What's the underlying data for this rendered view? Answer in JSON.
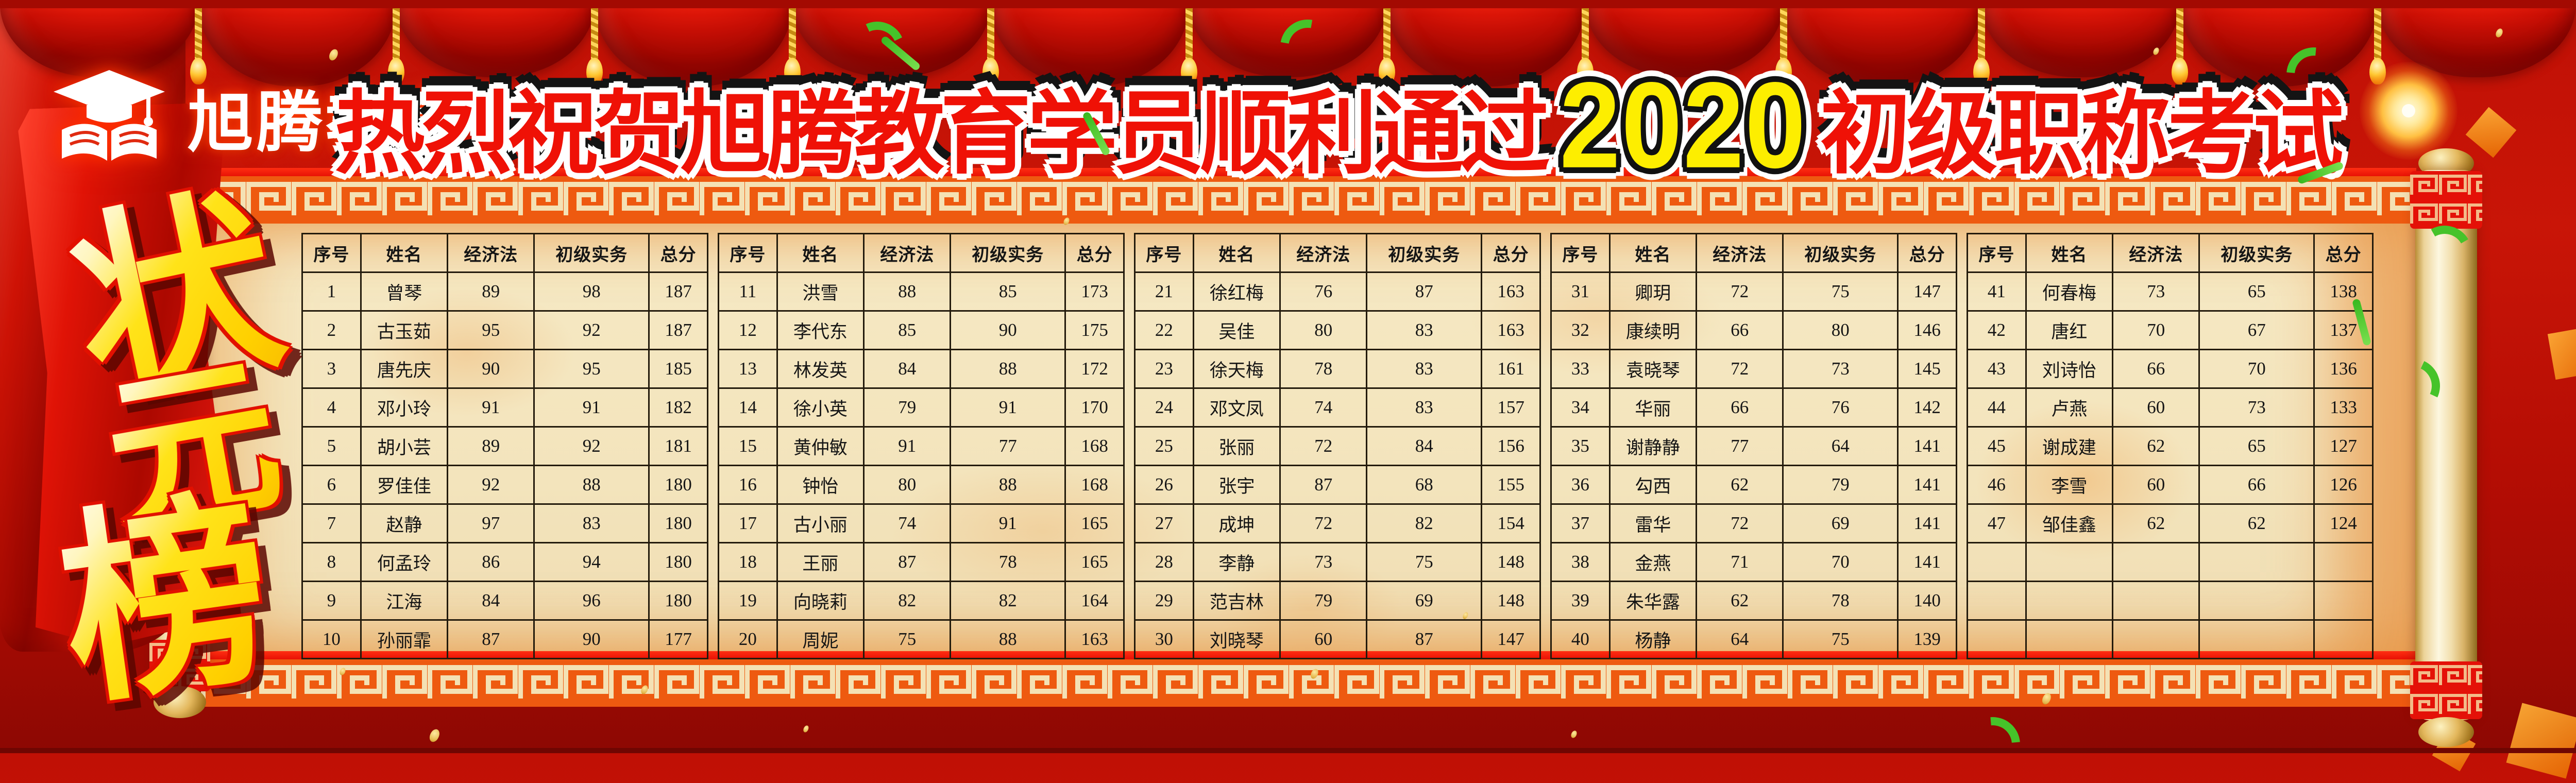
{
  "logo": {
    "name": "旭腾教育",
    "icon": "graduation-cap-book-icon"
  },
  "title": {
    "part1": "热烈祝贺旭腾教育学员顺利通过",
    "year": "2020",
    "part2": "初级职称考试"
  },
  "ribbon": {
    "chars": [
      "状",
      "元",
      "榜"
    ]
  },
  "table_headers": [
    "序号",
    "姓名",
    "经济法",
    "初级实务",
    "总分"
  ],
  "tables": [
    {
      "rows": [
        [
          "1",
          "曾琴",
          "89",
          "98",
          "187"
        ],
        [
          "2",
          "古玉茹",
          "95",
          "92",
          "187"
        ],
        [
          "3",
          "唐先庆",
          "90",
          "95",
          "185"
        ],
        [
          "4",
          "邓小玲",
          "91",
          "91",
          "182"
        ],
        [
          "5",
          "胡小芸",
          "89",
          "92",
          "181"
        ],
        [
          "6",
          "罗佳佳",
          "92",
          "88",
          "180"
        ],
        [
          "7",
          "赵静",
          "97",
          "83",
          "180"
        ],
        [
          "8",
          "何孟玲",
          "86",
          "94",
          "180"
        ],
        [
          "9",
          "江海",
          "84",
          "96",
          "180"
        ],
        [
          "10",
          "孙丽霏",
          "87",
          "90",
          "177"
        ]
      ]
    },
    {
      "rows": [
        [
          "11",
          "洪雪",
          "88",
          "85",
          "173"
        ],
        [
          "12",
          "李代东",
          "85",
          "90",
          "175"
        ],
        [
          "13",
          "林发英",
          "84",
          "88",
          "172"
        ],
        [
          "14",
          "徐小英",
          "79",
          "91",
          "170"
        ],
        [
          "15",
          "黄仲敏",
          "91",
          "77",
          "168"
        ],
        [
          "16",
          "钟怡",
          "80",
          "88",
          "168"
        ],
        [
          "17",
          "古小丽",
          "74",
          "91",
          "165"
        ],
        [
          "18",
          "王丽",
          "87",
          "78",
          "165"
        ],
        [
          "19",
          "向晓莉",
          "82",
          "82",
          "164"
        ],
        [
          "20",
          "周妮",
          "75",
          "88",
          "163"
        ]
      ]
    },
    {
      "rows": [
        [
          "21",
          "徐红梅",
          "76",
          "87",
          "163"
        ],
        [
          "22",
          "吴佳",
          "80",
          "83",
          "163"
        ],
        [
          "23",
          "徐天梅",
          "78",
          "83",
          "161"
        ],
        [
          "24",
          "邓文凤",
          "74",
          "83",
          "157"
        ],
        [
          "25",
          "张丽",
          "72",
          "84",
          "156"
        ],
        [
          "26",
          "张宇",
          "87",
          "68",
          "155"
        ],
        [
          "27",
          "成坤",
          "72",
          "82",
          "154"
        ],
        [
          "28",
          "李静",
          "73",
          "75",
          "148"
        ],
        [
          "29",
          "范吉林",
          "79",
          "69",
          "148"
        ],
        [
          "30",
          "刘晓琴",
          "60",
          "87",
          "147"
        ]
      ]
    },
    {
      "rows": [
        [
          "31",
          "卿玥",
          "72",
          "75",
          "147"
        ],
        [
          "32",
          "康续明",
          "66",
          "80",
          "146"
        ],
        [
          "33",
          "袁晓琴",
          "72",
          "73",
          "145"
        ],
        [
          "34",
          "华丽",
          "66",
          "76",
          "142"
        ],
        [
          "35",
          "谢静静",
          "77",
          "64",
          "141"
        ],
        [
          "36",
          "勾西",
          "62",
          "79",
          "141"
        ],
        [
          "37",
          "雷华",
          "72",
          "69",
          "141"
        ],
        [
          "38",
          "金燕",
          "71",
          "70",
          "141"
        ],
        [
          "39",
          "朱华露",
          "62",
          "78",
          "140"
        ],
        [
          "40",
          "杨静",
          "64",
          "75",
          "139"
        ]
      ]
    },
    {
      "rows": [
        [
          "41",
          "何春梅",
          "73",
          "65",
          "138"
        ],
        [
          "42",
          "唐红",
          "70",
          "67",
          "137"
        ],
        [
          "43",
          "刘诗怡",
          "66",
          "70",
          "136"
        ],
        [
          "44",
          "卢燕",
          "60",
          "73",
          "133"
        ],
        [
          "45",
          "谢成建",
          "62",
          "65",
          "127"
        ],
        [
          "46",
          "李雪",
          "60",
          "66",
          "126"
        ],
        [
          "47",
          "邹佳鑫",
          "62",
          "62",
          "124"
        ],
        [
          "",
          "",
          "",
          "",
          ""
        ],
        [
          "",
          "",
          "",
          "",
          ""
        ],
        [
          "",
          "",
          "",
          "",
          ""
        ]
      ]
    }
  ],
  "colors": {
    "background_red": "#b50d04",
    "curtain_red": "#ef1d0c",
    "title_red": "#ef1106",
    "year_yellow": "#fdee00",
    "gold": "#ffd919",
    "paper_cream": "#f3e4bc",
    "band_orange": "#ee5a10",
    "table_border": "#221a0c"
  }
}
